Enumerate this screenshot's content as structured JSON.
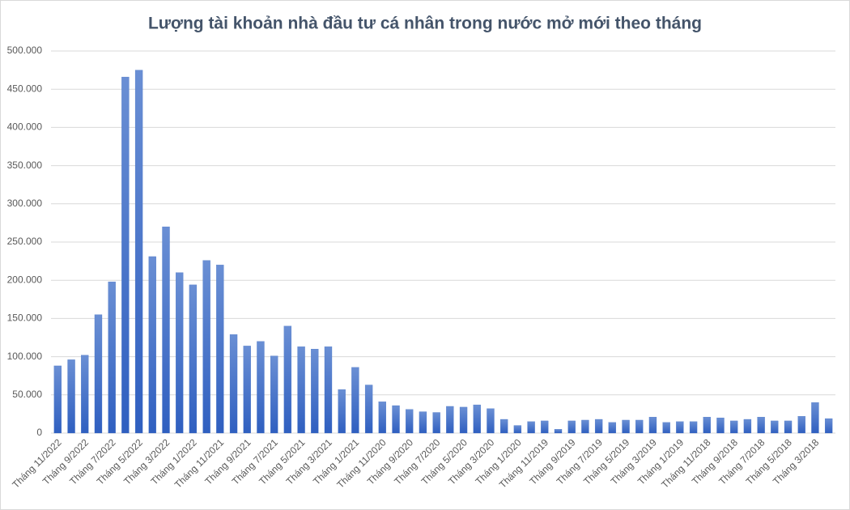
{
  "chart_data": {
    "type": "bar",
    "title": "Lượng tài khoản nhà đầu tư cá nhân trong nước mở mới theo tháng",
    "categories": [
      "Tháng 11/2022",
      null,
      "Tháng 9/2022",
      null,
      "Tháng 7/2022",
      null,
      "Tháng 5/2022",
      null,
      "Tháng 3/2022",
      null,
      "Tháng 1/2022",
      null,
      "Tháng 11/2021",
      null,
      "Tháng 9/2021",
      null,
      "Tháng 7/2021",
      null,
      "Tháng 5/2021",
      null,
      "Tháng 3/2021",
      null,
      "Tháng 1/2021",
      null,
      "Tháng 11/2020",
      null,
      "Tháng 9/2020",
      null,
      "Tháng 7/2020",
      null,
      "Tháng 5/2020",
      null,
      "Tháng 3/2020",
      null,
      "Tháng 1/2020",
      null,
      "Tháng 11/2019",
      null,
      "Tháng 9/2019",
      null,
      "Tháng 7/2019",
      null,
      "Tháng 5/2019",
      null,
      "Tháng 3/2019",
      null,
      "Tháng 1/2019",
      null,
      "Tháng 11/2018",
      null,
      "Tháng 9/2018",
      null,
      "Tháng 7/2018",
      null,
      "Tháng 5/2018",
      null,
      "Tháng 3/2018",
      null
    ],
    "values": [
      88000,
      96000,
      102000,
      155000,
      198000,
      466000,
      475000,
      231000,
      270000,
      210000,
      194000,
      226000,
      220000,
      129000,
      114000,
      120000,
      101000,
      140000,
      113000,
      110000,
      113000,
      57000,
      86000,
      63000,
      41000,
      36000,
      31000,
      28000,
      27000,
      35000,
      34000,
      37000,
      32000,
      18000,
      10000,
      15000,
      16000,
      5000,
      16000,
      17000,
      18000,
      14000,
      17000,
      17000,
      21000,
      14000,
      15000,
      15000,
      21000,
      20000,
      16000,
      18000,
      21000,
      16000,
      16000,
      22000,
      40000,
      19000
    ],
    "color": "#4472c4",
    "ylim": [
      0,
      500000
    ],
    "yticks": [
      0,
      {
        "value": 50000,
        "label": "50.000"
      },
      {
        "value": 100000,
        "label": "100.000"
      },
      {
        "value": 150000,
        "label": "150.000"
      },
      {
        "value": 200000,
        "label": "200.000"
      },
      {
        "value": 250000,
        "label": "250.000"
      },
      {
        "value": 300000,
        "label": "300.000"
      },
      {
        "value": 350000,
        "label": "350.000"
      },
      {
        "value": 400000,
        "label": "400.000"
      },
      {
        "value": 450000,
        "label": "450.000"
      },
      {
        "value": 500000,
        "label": "500.000"
      }
    ],
    "grid": true
  }
}
